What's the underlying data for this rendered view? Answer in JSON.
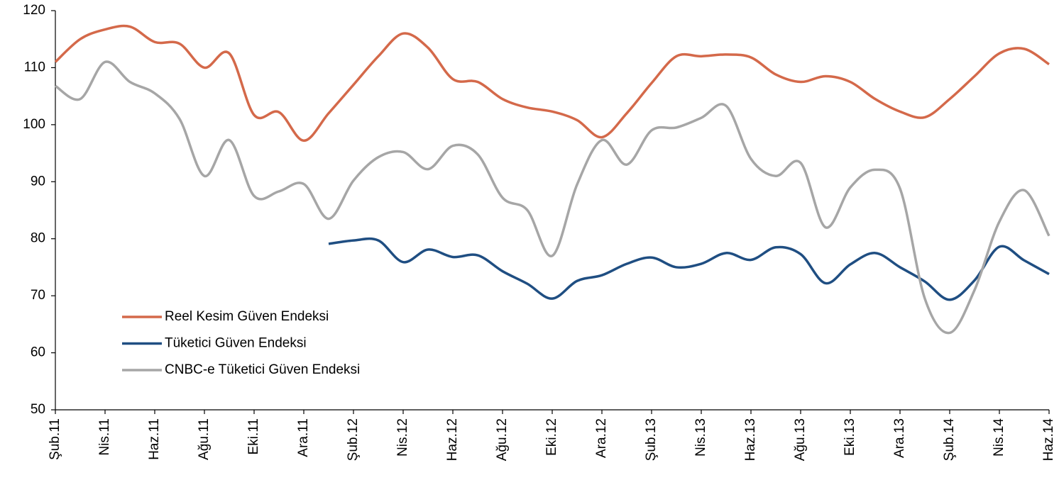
{
  "chart_data": {
    "type": "line",
    "categories": [
      "Şub.11",
      null,
      "Nis.11",
      null,
      "Haz.11",
      null,
      "Ağu.11",
      null,
      "Eki.11",
      null,
      "Ara.11",
      null,
      "Şub.12",
      null,
      "Nis.12",
      null,
      "Haz.12",
      null,
      "Ağu.12",
      null,
      "Eki.12",
      null,
      "Ara.12",
      null,
      "Şub.13",
      null,
      "Nis.13",
      null,
      "Haz.13",
      null,
      "Ağu.13",
      null,
      "Eki.13",
      null,
      "Ara.13",
      null,
      "Şub.14",
      null,
      "Nis.14",
      null,
      "Haz.14"
    ],
    "series": [
      {
        "name": "Reel Kesim Güven Endeksi",
        "color": "#d4694a",
        "values": [
          111,
          115,
          116.7,
          117.2,
          114.5,
          114.2,
          110,
          112.5,
          101.7,
          102.2,
          97.2,
          102,
          107,
          112,
          116,
          113.5,
          108,
          107.5,
          104.5,
          103,
          102.3,
          100.8,
          97.8,
          102,
          107.3,
          112,
          112,
          112.3,
          111.8,
          108.8,
          107.5,
          108.5,
          107.5,
          104.5,
          102.3,
          101.3,
          104.5,
          108.5,
          112.5,
          113.3,
          110.6
        ]
      },
      {
        "name": "Tüketici Güven Endeksi",
        "color": "#1f4e82",
        "values": [
          null,
          null,
          null,
          null,
          null,
          null,
          null,
          null,
          null,
          null,
          null,
          79.1,
          79.7,
          79.7,
          75.9,
          78.1,
          76.8,
          77.1,
          74.3,
          72.1,
          69.5,
          72.6,
          73.6,
          75.6,
          76.7,
          75,
          75.6,
          77.5,
          76.3,
          78.5,
          77.3,
          72.2,
          75.5,
          77.5,
          75,
          72.5,
          69.3,
          72.7,
          78.6,
          76.2,
          73.8
        ]
      },
      {
        "name": "CNBC-e Tüketici Güven Endeksi",
        "color": "#a6a6a6",
        "values": [
          106.8,
          104.5,
          111,
          107.5,
          105.5,
          101,
          91,
          97.3,
          87.5,
          88.3,
          89.6,
          83.5,
          90.2,
          94.3,
          95.2,
          92.2,
          96.3,
          94.8,
          87.2,
          85,
          77,
          89.5,
          97.3,
          93,
          99,
          99.5,
          101.2,
          103.3,
          94,
          91,
          93.3,
          82,
          89,
          92.1,
          88.8,
          69.5,
          63.5,
          71,
          83,
          88.5,
          80.5
        ]
      }
    ],
    "ylim": [
      50,
      120
    ],
    "yticks": [
      50,
      60,
      70,
      80,
      90,
      100,
      110,
      120
    ],
    "grid": false,
    "legend": "lower left"
  }
}
